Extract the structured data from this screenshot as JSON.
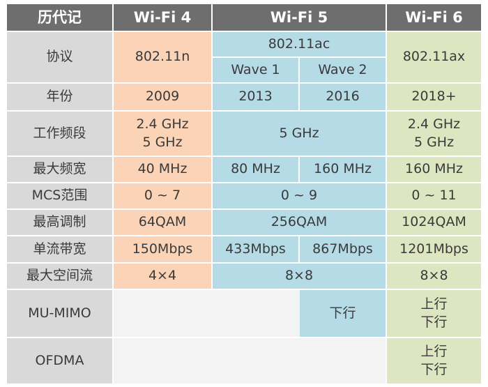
{
  "header": {
    "title": "历代记",
    "wifi4": "Wi-Fi 4",
    "wifi5": "Wi-Fi 5",
    "wifi6": "Wi-Fi 6"
  },
  "rows": {
    "protocol": {
      "label": "协议",
      "wifi4": "802.11n",
      "wifi5": "802.11ac",
      "wave1": "Wave 1",
      "wave2": "Wave 2",
      "wifi6": "802.11ax"
    },
    "year": {
      "label": "年份",
      "wifi4": "2009",
      "wave1": "2013",
      "wave2": "2016",
      "wifi6": "2018+"
    },
    "band": {
      "label": "工作频段",
      "wifi4_a": "2.4 GHz",
      "wifi4_b": "5 GHz",
      "wifi5": "5 GHz",
      "wifi6_a": "2.4 GHz",
      "wifi6_b": "5 GHz"
    },
    "bandwidth": {
      "label": "最大频宽",
      "wifi4": "40 MHz",
      "wave1": "80 MHz",
      "wave2": "160 MHz",
      "wifi6": "160 MHz"
    },
    "mcs": {
      "label": "MCS范围",
      "wifi4": "0 ~ 7",
      "wifi5": "0 ~ 9",
      "wifi6": "0 ~ 11"
    },
    "modulation": {
      "label": "最高调制",
      "wifi4": "64QAM",
      "wifi5": "256QAM",
      "wifi6": "1024QAM"
    },
    "stream_rate": {
      "label": "单流带宽",
      "wifi4": "150Mbps",
      "wave1": "433Mbps",
      "wave2": "867Mbps",
      "wifi6": "1201Mbps"
    },
    "spatial": {
      "label": "最大空间流",
      "wifi4": "4×4",
      "wifi5": "8×8",
      "wifi6": "8×8"
    },
    "mumimo": {
      "label": "MU-MIMO",
      "wave2": "下行",
      "wifi6_a": "上行",
      "wifi6_b": "下行"
    },
    "ofdma": {
      "label": "OFDMA",
      "wifi6_a": "上行",
      "wifi6_b": "下行"
    }
  }
}
